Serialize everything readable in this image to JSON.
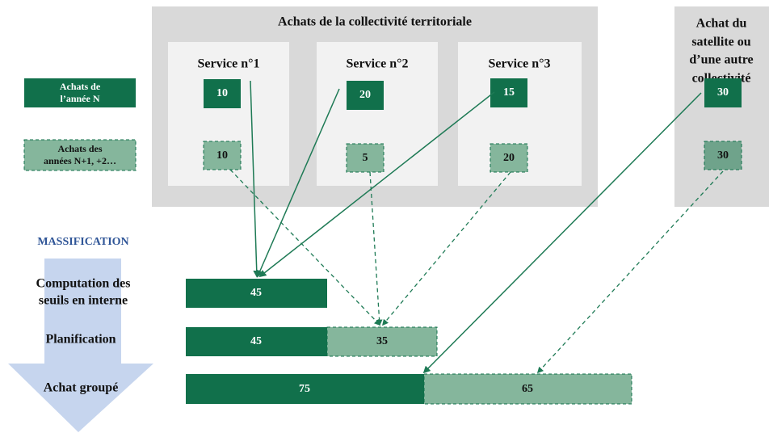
{
  "group_title": "Achats de la collectivité territoriale",
  "services": [
    {
      "label": "Service n°1",
      "year_n": 10,
      "later": 10
    },
    {
      "label": "Service n°2",
      "year_n": 20,
      "later": 5
    },
    {
      "label": "Service n°3",
      "year_n": 15,
      "later": 20
    }
  ],
  "satellite": {
    "label_lines": [
      "Achat du",
      "satellite ou",
      "d’une autre",
      "collectivité"
    ],
    "year_n": 30,
    "later": 30
  },
  "legend": {
    "year_n_lines": [
      "Achats de",
      "l’année N"
    ],
    "later_lines": [
      "Achats des",
      "années N+1, +2…"
    ]
  },
  "massification": "MASSIFICATION",
  "rows": [
    {
      "label_lines": [
        "Computation des",
        "seuils en interne"
      ],
      "year_n": 45
    },
    {
      "label_lines": [
        "Planification"
      ],
      "year_n": 45,
      "later": 35
    },
    {
      "label_lines": [
        "Achat groupé"
      ],
      "year_n": 75,
      "later": 65
    }
  ]
}
